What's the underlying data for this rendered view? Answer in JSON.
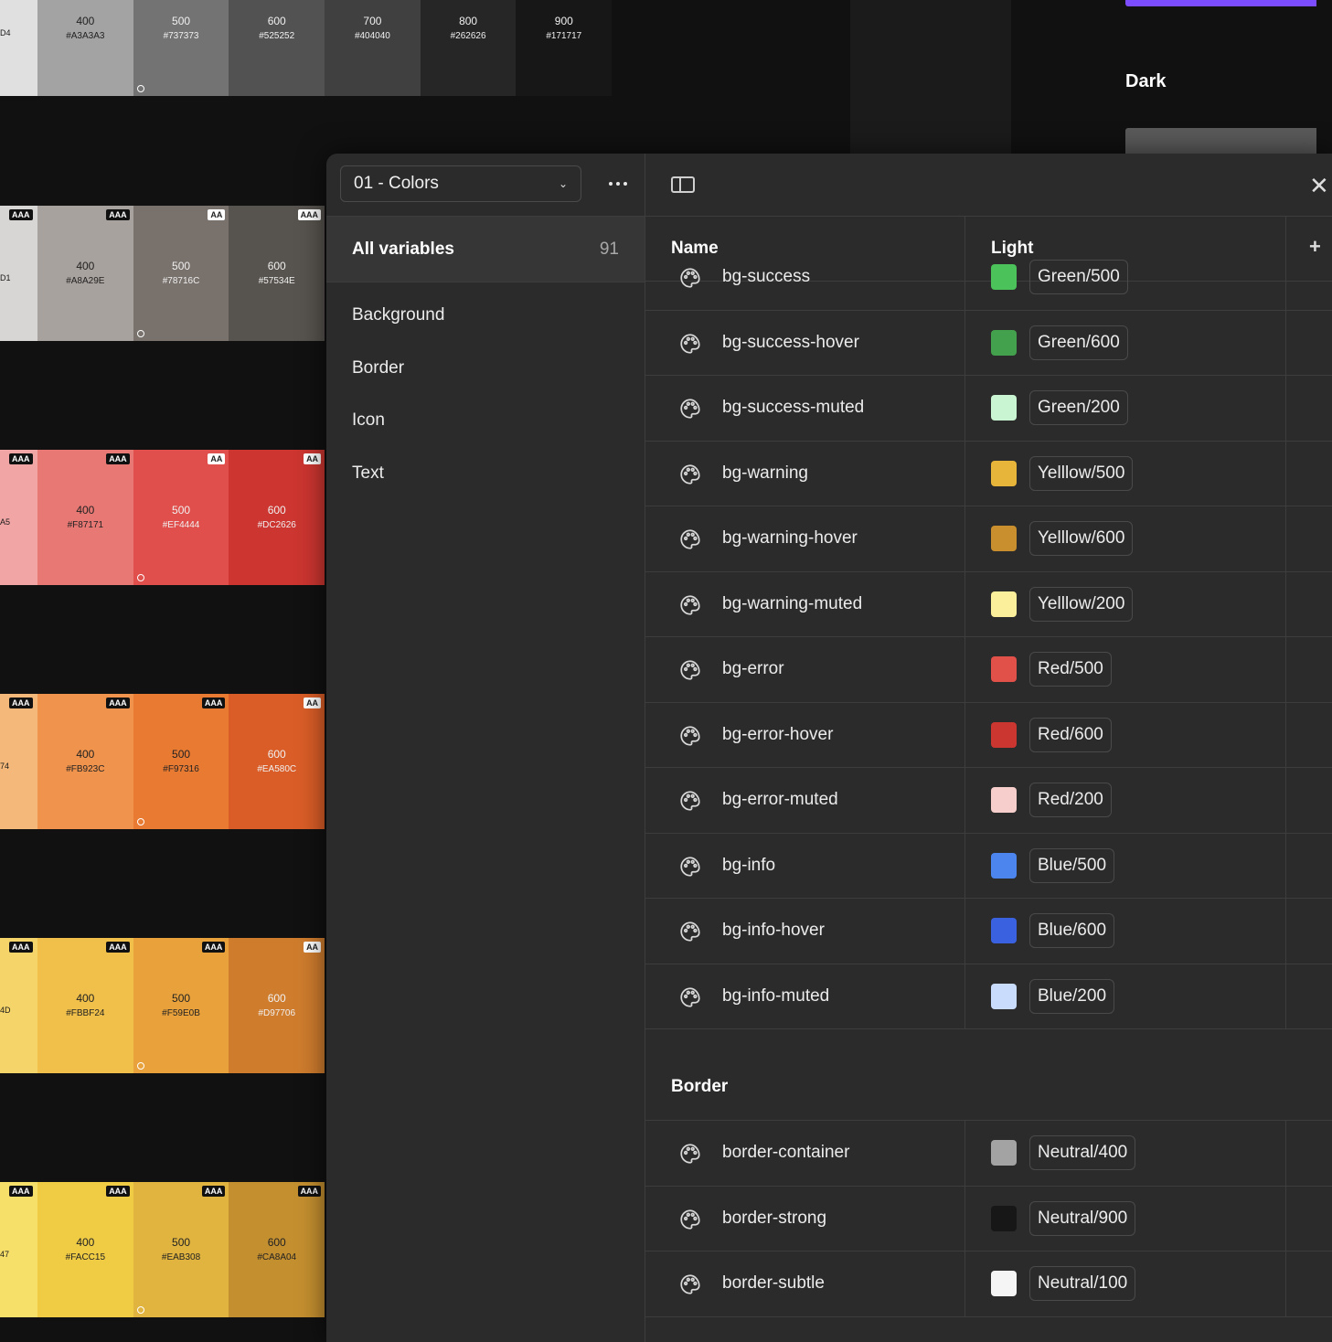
{
  "canvas": {
    "dark_label": "Dark",
    "rows": [
      {
        "bg": "#e0e0e0",
        "partial": {
          "hex": "D4",
          "color": "#1a1a1a"
        },
        "swatches": [
          {
            "step": "400",
            "hex": "#A3A3A3",
            "color": "#a3a3a3",
            "text": "#222222",
            "badge": ""
          },
          {
            "step": "500",
            "hex": "#737373",
            "color": "#737373",
            "text": "#f0f0f0",
            "badge": "",
            "ring": true
          },
          {
            "step": "600",
            "hex": "#525252",
            "color": "#525252",
            "text": "#f0f0f0",
            "badge": ""
          },
          {
            "step": "700",
            "hex": "#404040",
            "color": "#404040",
            "text": "#f0f0f0",
            "badge": ""
          },
          {
            "step": "800",
            "hex": "#262626",
            "color": "#262626",
            "text": "#f0f0f0",
            "badge": ""
          },
          {
            "step": "900",
            "hex": "#171717",
            "color": "#171717",
            "text": "#f0f0f0",
            "badge": ""
          }
        ]
      },
      {
        "bg": "#d8d6d4",
        "partial": {
          "hex": "D1",
          "color": "#1a1a1a",
          "badge": "AAA"
        },
        "swatches": [
          {
            "step": "400",
            "hex": "#A8A29E",
            "color": "#a8a29e",
            "text": "#222222",
            "badge": "AAA",
            "badge_style": "dark"
          },
          {
            "step": "500",
            "hex": "#78716C",
            "color": "#78716c",
            "text": "#f0f0f0",
            "badge": "AA",
            "badge_style": "light",
            "ring": true
          },
          {
            "step": "600",
            "hex": "#57534E",
            "color": "#57534e",
            "text": "#f0f0f0",
            "badge": "AAA",
            "badge_style": "light"
          }
        ]
      },
      {
        "bg": "#f2a5a5",
        "partial": {
          "hex": "A5",
          "color": "#1a1a1a",
          "badge": "AAA"
        },
        "swatches": [
          {
            "step": "400",
            "hex": "#F87171",
            "color": "#e87873",
            "text": "#222222",
            "badge": "AAA",
            "badge_style": "dark"
          },
          {
            "step": "500",
            "hex": "#EF4444",
            "color": "#e04f4b",
            "text": "#f0f0f0",
            "badge": "AA",
            "badge_style": "light",
            "ring": true
          },
          {
            "step": "600",
            "hex": "#DC2626",
            "color": "#cc3530",
            "text": "#f0f0f0",
            "badge": "AA",
            "badge_style": "light"
          }
        ]
      },
      {
        "bg": "#f4b97a",
        "partial": {
          "hex": "74",
          "color": "#1a1a1a",
          "badge": "AAA"
        },
        "swatches": [
          {
            "step": "400",
            "hex": "#FB923C",
            "color": "#f0934c",
            "text": "#222222",
            "badge": "AAA",
            "badge_style": "dark"
          },
          {
            "step": "500",
            "hex": "#F97316",
            "color": "#e97a32",
            "text": "#222222",
            "badge": "AAA",
            "badge_style": "dark",
            "ring": true
          },
          {
            "step": "600",
            "hex": "#EA580C",
            "color": "#da5d27",
            "text": "#f0f0f0",
            "badge": "AA",
            "badge_style": "light"
          }
        ]
      },
      {
        "bg": "#f5d46a",
        "partial": {
          "hex": "4D",
          "color": "#1a1a1a",
          "badge": "AAA"
        },
        "swatches": [
          {
            "step": "400",
            "hex": "#FBBF24",
            "color": "#f0c04a",
            "text": "#222222",
            "badge": "AAA",
            "badge_style": "dark"
          },
          {
            "step": "500",
            "hex": "#F59E0B",
            "color": "#e9a23b",
            "text": "#222222",
            "badge": "AAA",
            "badge_style": "dark",
            "ring": true
          },
          {
            "step": "600",
            "hex": "#D97706",
            "color": "#cf7c2d",
            "text": "#f0f0f0",
            "badge": "AA",
            "badge_style": "light"
          }
        ]
      },
      {
        "bg": "#f7e06a",
        "partial": {
          "hex": "47",
          "color": "#1a1a1a",
          "badge": "AAA"
        },
        "swatches": [
          {
            "step": "400",
            "hex": "#FACC15",
            "color": "#f0cc45",
            "text": "#222222",
            "badge": "AAA",
            "badge_style": "dark"
          },
          {
            "step": "500",
            "hex": "#EAB308",
            "color": "#e0b43f",
            "text": "#222222",
            "badge": "AAA",
            "badge_style": "dark",
            "ring": true
          },
          {
            "step": "600",
            "hex": "#CA8A04",
            "color": "#c48f2f",
            "text": "#222222",
            "badge": "AAA",
            "badge_style": "dark"
          }
        ]
      }
    ]
  },
  "modal": {
    "collection": "01 - Colors",
    "all_variables": {
      "label": "All variables",
      "count": "91"
    },
    "groups": [
      "Background",
      "Border",
      "Icon",
      "Text"
    ],
    "columns": {
      "name": "Name",
      "light": "Light"
    },
    "background_rows": [
      {
        "name": "bg-success",
        "alias": "Green/500",
        "swatch": "#4cc25a"
      },
      {
        "name": "bg-success-hover",
        "alias": "Green/600",
        "swatch": "#43a04c"
      },
      {
        "name": "bg-success-muted",
        "alias": "Green/200",
        "swatch": "#c9f5d2"
      },
      {
        "name": "bg-warning",
        "alias": "Yelllow/500",
        "swatch": "#e6b53a"
      },
      {
        "name": "bg-warning-hover",
        "alias": "Yelllow/600",
        "swatch": "#c98f2e"
      },
      {
        "name": "bg-warning-muted",
        "alias": "Yelllow/200",
        "swatch": "#fbef9b"
      },
      {
        "name": "bg-error",
        "alias": "Red/500",
        "swatch": "#e2504a"
      },
      {
        "name": "bg-error-hover",
        "alias": "Red/600",
        "swatch": "#cc3630"
      },
      {
        "name": "bg-error-muted",
        "alias": "Red/200",
        "swatch": "#f6cfcc"
      },
      {
        "name": "bg-info",
        "alias": "Blue/500",
        "swatch": "#4c85ee"
      },
      {
        "name": "bg-info-hover",
        "alias": "Blue/600",
        "swatch": "#3a62e0"
      },
      {
        "name": "bg-info-muted",
        "alias": "Blue/200",
        "swatch": "#c9dcfc"
      }
    ],
    "border_heading": "Border",
    "border_rows": [
      {
        "name": "border-container",
        "alias": "Neutral/400",
        "swatch": "#a3a3a3"
      },
      {
        "name": "border-strong",
        "alias": "Neutral/900",
        "swatch": "#171717"
      },
      {
        "name": "border-subtle",
        "alias": "Neutral/100",
        "swatch": "#f5f5f5"
      }
    ]
  }
}
